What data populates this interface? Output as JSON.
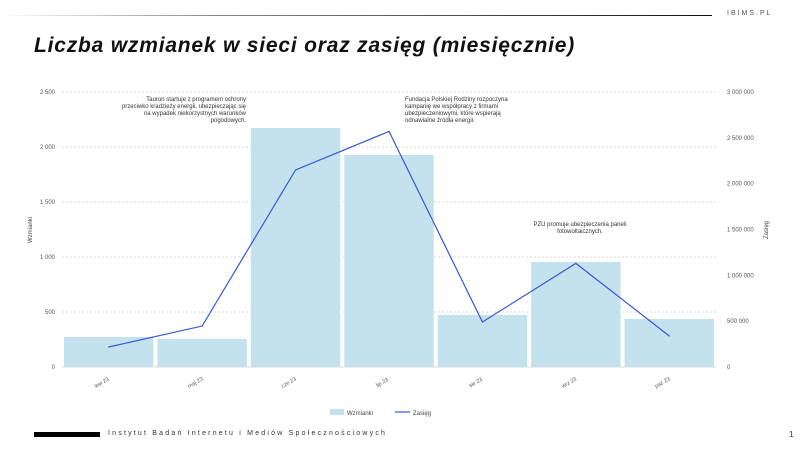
{
  "brand": "IBIMS.PL",
  "title": "Liczba wzmianek w sieci oraz zasięg (miesięcznie)",
  "footer": {
    "org": "Instytut Badań Internetu i Mediów Społecznościowych",
    "page": "1"
  },
  "annotations": [
    "Tauron startuje z programem ochrony przeciwko kradzieży energii, ubezpieczając się na wypadek niekorzystnych warunków pogodowych.",
    "Fundacja Polskiej Rodziny rozpoczyna kampanię we współpracy z firmami ubezpieczeniowymi, które wspierają odnawialne źródła energii.",
    "PZU promuje ubezpieczenia paneli fotowoltaicznych."
  ],
  "chart_data": {
    "type": "bar+line",
    "categories": [
      "kwi 23",
      "maj 23",
      "cze 23",
      "lip 23",
      "sie 23",
      "wrz 23",
      "paź 23"
    ],
    "series": [
      {
        "name": "Wzmianki",
        "type": "bar",
        "axis": "left",
        "color": "#c3e2ee",
        "values": [
          273,
          255,
          2173,
          1927,
          473,
          955,
          436
        ]
      },
      {
        "name": "Zasięg",
        "type": "line",
        "axis": "right",
        "color": "#3a56d4",
        "values": [
          218000,
          447000,
          2150000,
          2570000,
          491000,
          1130000,
          338000
        ]
      }
    ],
    "ylabel": "Wzmianki",
    "y2label": "Zasięg",
    "ylim": [
      0,
      2500
    ],
    "y2lim": [
      0,
      3000000
    ],
    "yticks": [
      "0",
      "500",
      "1 000",
      "1 500",
      "2 000",
      "2 500"
    ],
    "y2ticks": [
      "0",
      "500 000",
      "1 000 000",
      "1 500 000",
      "2 000 000",
      "2 500 000",
      "3 000 000"
    ],
    "grid": true,
    "legend": "bottom"
  }
}
